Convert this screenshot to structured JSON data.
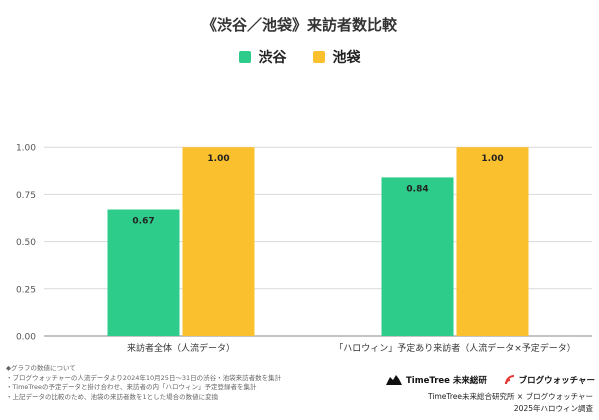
{
  "chart_data": {
    "type": "bar",
    "title": "《渋谷／池袋》来訪者数比較",
    "categories": [
      "来訪者全体（人流データ）",
      "「ハロウィン」予定あり来訪者（人流データ×予定データ）"
    ],
    "series": [
      {
        "name": "渋谷",
        "color": "#2ecc8a",
        "values": [
          0.67,
          0.84
        ],
        "labels": [
          "0.67",
          "0.84"
        ]
      },
      {
        "name": "池袋",
        "color": "#fbc02d",
        "values": [
          1.0,
          1.0
        ],
        "labels": [
          "1.00",
          "1.00"
        ]
      }
    ],
    "ylim": [
      0,
      1.25
    ],
    "yticks": [
      "0.00",
      "0.25",
      "0.50",
      "0.75",
      "1.00"
    ],
    "ytick_values": [
      0,
      0.25,
      0.5,
      0.75,
      1.0
    ],
    "grid": true,
    "legend_position": "top-center"
  },
  "footer": {
    "notes": [
      "◆グラフの数値について",
      "・ブログウォッチャーの人流データより2024年10月25日〜31日の渋谷・池袋来訪者数を集計",
      "・TimeTreeの予定データと掛け合わせ、来訪者の内「ハロウィン」予定登録者を集計",
      "・上記データの比較のため、池袋の来訪者数を1とした場合の数値に変換"
    ],
    "brand_timetree": "TimeTree 未来総研",
    "brand_blogwatcher": "ブログウォッチャー",
    "credit_line": "TimeTree未来総合研究所 × ブログウォッチャー",
    "credit_year": "2025年ハロウィン調査"
  }
}
